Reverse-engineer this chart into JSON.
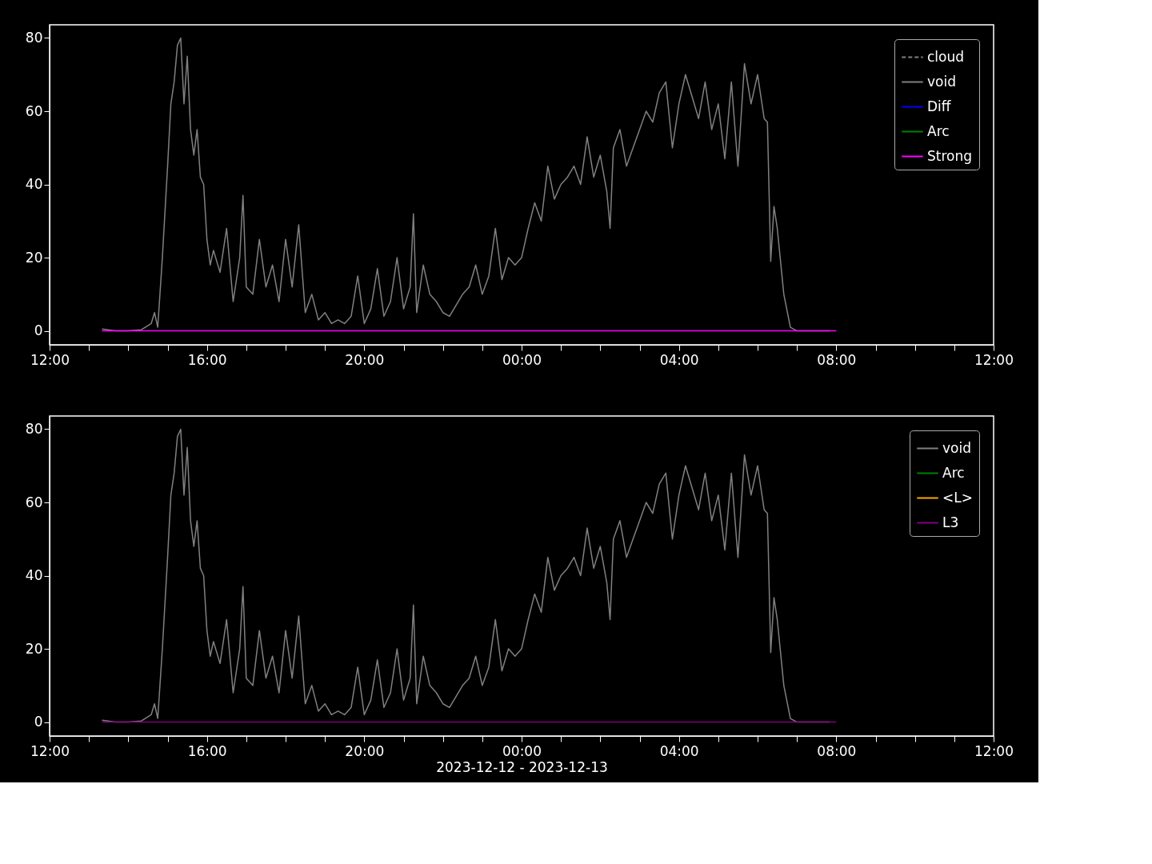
{
  "chart_data": [
    {
      "type": "line",
      "xlim": [
        "2023-12-12T12:00",
        "2023-12-13T12:00"
      ],
      "ylim": [
        -3.8,
        83.6
      ],
      "yticks": [
        0,
        20,
        40,
        60,
        80
      ],
      "xticks": [
        {
          "value": "2023-12-12T12:00",
          "label": "12:00"
        },
        {
          "value": "2023-12-12T13:00",
          "label": null
        },
        {
          "value": "2023-12-12T14:00",
          "label": null
        },
        {
          "value": "2023-12-12T15:00",
          "label": null
        },
        {
          "value": "2023-12-12T16:00",
          "label": "16:00"
        },
        {
          "value": "2023-12-12T17:00",
          "label": null
        },
        {
          "value": "2023-12-12T18:00",
          "label": null
        },
        {
          "value": "2023-12-12T19:00",
          "label": null
        },
        {
          "value": "2023-12-12T20:00",
          "label": "20:00"
        },
        {
          "value": "2023-12-12T21:00",
          "label": null
        },
        {
          "value": "2023-12-12T22:00",
          "label": null
        },
        {
          "value": "2023-12-12T23:00",
          "label": null
        },
        {
          "value": "2023-12-13T00:00",
          "label": "00:00"
        },
        {
          "value": "2023-12-13T01:00",
          "label": null
        },
        {
          "value": "2023-12-13T02:00",
          "label": null
        },
        {
          "value": "2023-12-13T03:00",
          "label": null
        },
        {
          "value": "2023-12-13T04:00",
          "label": "04:00"
        },
        {
          "value": "2023-12-13T05:00",
          "label": null
        },
        {
          "value": "2023-12-13T06:00",
          "label": null
        },
        {
          "value": "2023-12-13T07:00",
          "label": null
        },
        {
          "value": "2023-12-13T08:00",
          "label": "08:00"
        },
        {
          "value": "2023-12-13T09:00",
          "label": null
        },
        {
          "value": "2023-12-13T10:00",
          "label": null
        },
        {
          "value": "2023-12-13T11:00",
          "label": null
        },
        {
          "value": "2023-12-13T12:00",
          "label": "12:00"
        }
      ],
      "legend": "top right",
      "grid": false,
      "series": [
        {
          "name": "cloud",
          "color": "#808080",
          "line_style": "dashed"
        },
        {
          "name": "void",
          "color": "#808080",
          "x": [
            "2023-12-12T13:20",
            "2023-12-12T13:40",
            "2023-12-12T14:00",
            "2023-12-12T14:20",
            "2023-12-12T14:35",
            "2023-12-12T14:40",
            "2023-12-12T14:45",
            "2023-12-12T14:52",
            "2023-12-12T15:00",
            "2023-12-12T15:05",
            "2023-12-12T15:10",
            "2023-12-12T15:15",
            "2023-12-12T15:20",
            "2023-12-12T15:25",
            "2023-12-12T15:30",
            "2023-12-12T15:35",
            "2023-12-12T15:40",
            "2023-12-12T15:45",
            "2023-12-12T15:50",
            "2023-12-12T15:55",
            "2023-12-12T16:00",
            "2023-12-12T16:05",
            "2023-12-12T16:10",
            "2023-12-12T16:20",
            "2023-12-12T16:30",
            "2023-12-12T16:40",
            "2023-12-12T16:50",
            "2023-12-12T16:55",
            "2023-12-12T17:00",
            "2023-12-12T17:10",
            "2023-12-12T17:20",
            "2023-12-12T17:30",
            "2023-12-12T17:40",
            "2023-12-12T17:50",
            "2023-12-12T18:00",
            "2023-12-12T18:10",
            "2023-12-12T18:20",
            "2023-12-12T18:30",
            "2023-12-12T18:40",
            "2023-12-12T18:50",
            "2023-12-12T19:00",
            "2023-12-12T19:10",
            "2023-12-12T19:20",
            "2023-12-12T19:30",
            "2023-12-12T19:40",
            "2023-12-12T19:50",
            "2023-12-12T20:00",
            "2023-12-12T20:10",
            "2023-12-12T20:20",
            "2023-12-12T20:30",
            "2023-12-12T20:40",
            "2023-12-12T20:50",
            "2023-12-12T21:00",
            "2023-12-12T21:10",
            "2023-12-12T21:15",
            "2023-12-12T21:20",
            "2023-12-12T21:30",
            "2023-12-12T21:40",
            "2023-12-12T21:50",
            "2023-12-12T22:00",
            "2023-12-12T22:10",
            "2023-12-12T22:20",
            "2023-12-12T22:30",
            "2023-12-12T22:40",
            "2023-12-12T22:50",
            "2023-12-12T23:00",
            "2023-12-12T23:10",
            "2023-12-12T23:20",
            "2023-12-12T23:30",
            "2023-12-12T23:40",
            "2023-12-12T23:50",
            "2023-12-13T00:00",
            "2023-12-13T00:10",
            "2023-12-13T00:20",
            "2023-12-13T00:30",
            "2023-12-13T00:40",
            "2023-12-13T00:50",
            "2023-12-13T01:00",
            "2023-12-13T01:10",
            "2023-12-13T01:20",
            "2023-12-13T01:30",
            "2023-12-13T01:40",
            "2023-12-13T01:50",
            "2023-12-13T02:00",
            "2023-12-13T02:10",
            "2023-12-13T02:15",
            "2023-12-13T02:20",
            "2023-12-13T02:30",
            "2023-12-13T02:40",
            "2023-12-13T02:50",
            "2023-12-13T03:00",
            "2023-12-13T03:10",
            "2023-12-13T03:20",
            "2023-12-13T03:30",
            "2023-12-13T03:40",
            "2023-12-13T03:50",
            "2023-12-13T04:00",
            "2023-12-13T04:10",
            "2023-12-13T04:20",
            "2023-12-13T04:30",
            "2023-12-13T04:40",
            "2023-12-13T04:50",
            "2023-12-13T05:00",
            "2023-12-13T05:10",
            "2023-12-13T05:20",
            "2023-12-13T05:30",
            "2023-12-13T05:40",
            "2023-12-13T05:50",
            "2023-12-13T06:00",
            "2023-12-13T06:10",
            "2023-12-13T06:15",
            "2023-12-13T06:20",
            "2023-12-13T06:25",
            "2023-12-13T06:30",
            "2023-12-13T06:40",
            "2023-12-13T06:50",
            "2023-12-13T07:00",
            "2023-12-13T07:20",
            "2023-12-13T07:50"
          ],
          "values": [
            0.5,
            0,
            0,
            0.3,
            2,
            5,
            1,
            20,
            45,
            62,
            68,
            78,
            80,
            62,
            75,
            55,
            48,
            55,
            42,
            40,
            25,
            18,
            22,
            16,
            28,
            8,
            20,
            37,
            12,
            10,
            25,
            12,
            18,
            8,
            25,
            12,
            29,
            5,
            10,
            3,
            5,
            2,
            3,
            2,
            4,
            15,
            2,
            6,
            17,
            4,
            8,
            20,
            6,
            12,
            32,
            5,
            18,
            10,
            8,
            5,
            4,
            7,
            10,
            12,
            18,
            10,
            15,
            28,
            14,
            20,
            18,
            20,
            28,
            35,
            30,
            45,
            36,
            40,
            42,
            45,
            40,
            53,
            42,
            48,
            38,
            28,
            50,
            55,
            45,
            50,
            55,
            60,
            57,
            65,
            68,
            50,
            62,
            70,
            64,
            58,
            68,
            55,
            62,
            47,
            68,
            45,
            73,
            62,
            70,
            58,
            57,
            19,
            34,
            28,
            10,
            1,
            0,
            0,
            0
          ]
        },
        {
          "name": "Diff",
          "color": "#0000ff"
        },
        {
          "name": "Arc",
          "color": "#008000"
        },
        {
          "name": "Strong",
          "color": "#ff00ff",
          "x": [
            "2023-12-12T13:20",
            "2023-12-13T08:00"
          ],
          "values": [
            0,
            0
          ]
        }
      ]
    },
    {
      "type": "line",
      "xlabel": "2023-12-12 - 2023-12-13",
      "xlim": [
        "2023-12-12T12:00",
        "2023-12-13T12:00"
      ],
      "ylim": [
        -3.8,
        83.6
      ],
      "yticks": [
        0,
        20,
        40,
        60,
        80
      ],
      "xticks": [
        {
          "value": "2023-12-12T12:00",
          "label": "12:00"
        },
        {
          "value": "2023-12-12T13:00",
          "label": null
        },
        {
          "value": "2023-12-12T14:00",
          "label": null
        },
        {
          "value": "2023-12-12T15:00",
          "label": null
        },
        {
          "value": "2023-12-12T16:00",
          "label": "16:00"
        },
        {
          "value": "2023-12-12T17:00",
          "label": null
        },
        {
          "value": "2023-12-12T18:00",
          "label": null
        },
        {
          "value": "2023-12-12T19:00",
          "label": null
        },
        {
          "value": "2023-12-12T20:00",
          "label": "20:00"
        },
        {
          "value": "2023-12-12T21:00",
          "label": null
        },
        {
          "value": "2023-12-12T22:00",
          "label": null
        },
        {
          "value": "2023-12-12T23:00",
          "label": null
        },
        {
          "value": "2023-12-13T00:00",
          "label": "00:00"
        },
        {
          "value": "2023-12-13T01:00",
          "label": null
        },
        {
          "value": "2023-12-13T02:00",
          "label": null
        },
        {
          "value": "2023-12-13T03:00",
          "label": null
        },
        {
          "value": "2023-12-13T04:00",
          "label": "04:00"
        },
        {
          "value": "2023-12-13T05:00",
          "label": null
        },
        {
          "value": "2023-12-13T06:00",
          "label": null
        },
        {
          "value": "2023-12-13T07:00",
          "label": null
        },
        {
          "value": "2023-12-13T08:00",
          "label": "08:00"
        },
        {
          "value": "2023-12-13T09:00",
          "label": null
        },
        {
          "value": "2023-12-13T10:00",
          "label": null
        },
        {
          "value": "2023-12-13T11:00",
          "label": null
        },
        {
          "value": "2023-12-13T12:00",
          "label": "12:00"
        }
      ],
      "legend": "top right",
      "grid": false,
      "series": [
        {
          "name": "void",
          "color": "#808080",
          "x": [
            "2023-12-12T13:20",
            "2023-12-12T13:40",
            "2023-12-12T14:00",
            "2023-12-12T14:20",
            "2023-12-12T14:35",
            "2023-12-12T14:40",
            "2023-12-12T14:45",
            "2023-12-12T14:52",
            "2023-12-12T15:00",
            "2023-12-12T15:05",
            "2023-12-12T15:10",
            "2023-12-12T15:15",
            "2023-12-12T15:20",
            "2023-12-12T15:25",
            "2023-12-12T15:30",
            "2023-12-12T15:35",
            "2023-12-12T15:40",
            "2023-12-12T15:45",
            "2023-12-12T15:50",
            "2023-12-12T15:55",
            "2023-12-12T16:00",
            "2023-12-12T16:05",
            "2023-12-12T16:10",
            "2023-12-12T16:20",
            "2023-12-12T16:30",
            "2023-12-12T16:40",
            "2023-12-12T16:50",
            "2023-12-12T16:55",
            "2023-12-12T17:00",
            "2023-12-12T17:10",
            "2023-12-12T17:20",
            "2023-12-12T17:30",
            "2023-12-12T17:40",
            "2023-12-12T17:50",
            "2023-12-12T18:00",
            "2023-12-12T18:10",
            "2023-12-12T18:20",
            "2023-12-12T18:30",
            "2023-12-12T18:40",
            "2023-12-12T18:50",
            "2023-12-12T19:00",
            "2023-12-12T19:10",
            "2023-12-12T19:20",
            "2023-12-12T19:30",
            "2023-12-12T19:40",
            "2023-12-12T19:50",
            "2023-12-12T20:00",
            "2023-12-12T20:10",
            "2023-12-12T20:20",
            "2023-12-12T20:30",
            "2023-12-12T20:40",
            "2023-12-12T20:50",
            "2023-12-12T21:00",
            "2023-12-12T21:10",
            "2023-12-12T21:15",
            "2023-12-12T21:20",
            "2023-12-12T21:30",
            "2023-12-12T21:40",
            "2023-12-12T21:50",
            "2023-12-12T22:00",
            "2023-12-12T22:10",
            "2023-12-12T22:20",
            "2023-12-12T22:30",
            "2023-12-12T22:40",
            "2023-12-12T22:50",
            "2023-12-12T23:00",
            "2023-12-12T23:10",
            "2023-12-12T23:20",
            "2023-12-12T23:30",
            "2023-12-12T23:40",
            "2023-12-12T23:50",
            "2023-12-13T00:00",
            "2023-12-13T00:10",
            "2023-12-13T00:20",
            "2023-12-13T00:30",
            "2023-12-13T00:40",
            "2023-12-13T00:50",
            "2023-12-13T01:00",
            "2023-12-13T01:10",
            "2023-12-13T01:20",
            "2023-12-13T01:30",
            "2023-12-13T01:40",
            "2023-12-13T01:50",
            "2023-12-13T02:00",
            "2023-12-13T02:10",
            "2023-12-13T02:15",
            "2023-12-13T02:20",
            "2023-12-13T02:30",
            "2023-12-13T02:40",
            "2023-12-13T02:50",
            "2023-12-13T03:00",
            "2023-12-13T03:10",
            "2023-12-13T03:20",
            "2023-12-13T03:30",
            "2023-12-13T03:40",
            "2023-12-13T03:50",
            "2023-12-13T04:00",
            "2023-12-13T04:10",
            "2023-12-13T04:20",
            "2023-12-13T04:30",
            "2023-12-13T04:40",
            "2023-12-13T04:50",
            "2023-12-13T05:00",
            "2023-12-13T05:10",
            "2023-12-13T05:20",
            "2023-12-13T05:30",
            "2023-12-13T05:40",
            "2023-12-13T05:50",
            "2023-12-13T06:00",
            "2023-12-13T06:10",
            "2023-12-13T06:15",
            "2023-12-13T06:20",
            "2023-12-13T06:25",
            "2023-12-13T06:30",
            "2023-12-13T06:40",
            "2023-12-13T06:50",
            "2023-12-13T07:00",
            "2023-12-13T07:20",
            "2023-12-13T07:50"
          ],
          "values": [
            0.5,
            0,
            0,
            0.3,
            2,
            5,
            1,
            20,
            45,
            62,
            68,
            78,
            80,
            62,
            75,
            55,
            48,
            55,
            42,
            40,
            25,
            18,
            22,
            16,
            28,
            8,
            20,
            37,
            12,
            10,
            25,
            12,
            18,
            8,
            25,
            12,
            29,
            5,
            10,
            3,
            5,
            2,
            3,
            2,
            4,
            15,
            2,
            6,
            17,
            4,
            8,
            20,
            6,
            12,
            32,
            5,
            18,
            10,
            8,
            5,
            4,
            7,
            10,
            12,
            18,
            10,
            15,
            28,
            14,
            20,
            18,
            20,
            28,
            35,
            30,
            45,
            36,
            40,
            42,
            45,
            40,
            53,
            42,
            48,
            38,
            28,
            50,
            55,
            45,
            50,
            55,
            60,
            57,
            65,
            68,
            50,
            62,
            70,
            64,
            58,
            68,
            55,
            62,
            47,
            68,
            45,
            73,
            62,
            70,
            58,
            57,
            19,
            34,
            28,
            10,
            1,
            0,
            0,
            0
          ]
        },
        {
          "name": "Arc",
          "color": "#008000"
        },
        {
          "name": "<L>",
          "color": "#ffa500"
        },
        {
          "name": "L3",
          "color": "#800080",
          "x": [
            "2023-12-12T13:20",
            "2023-12-13T08:00"
          ],
          "values": [
            0,
            0
          ]
        }
      ]
    }
  ]
}
